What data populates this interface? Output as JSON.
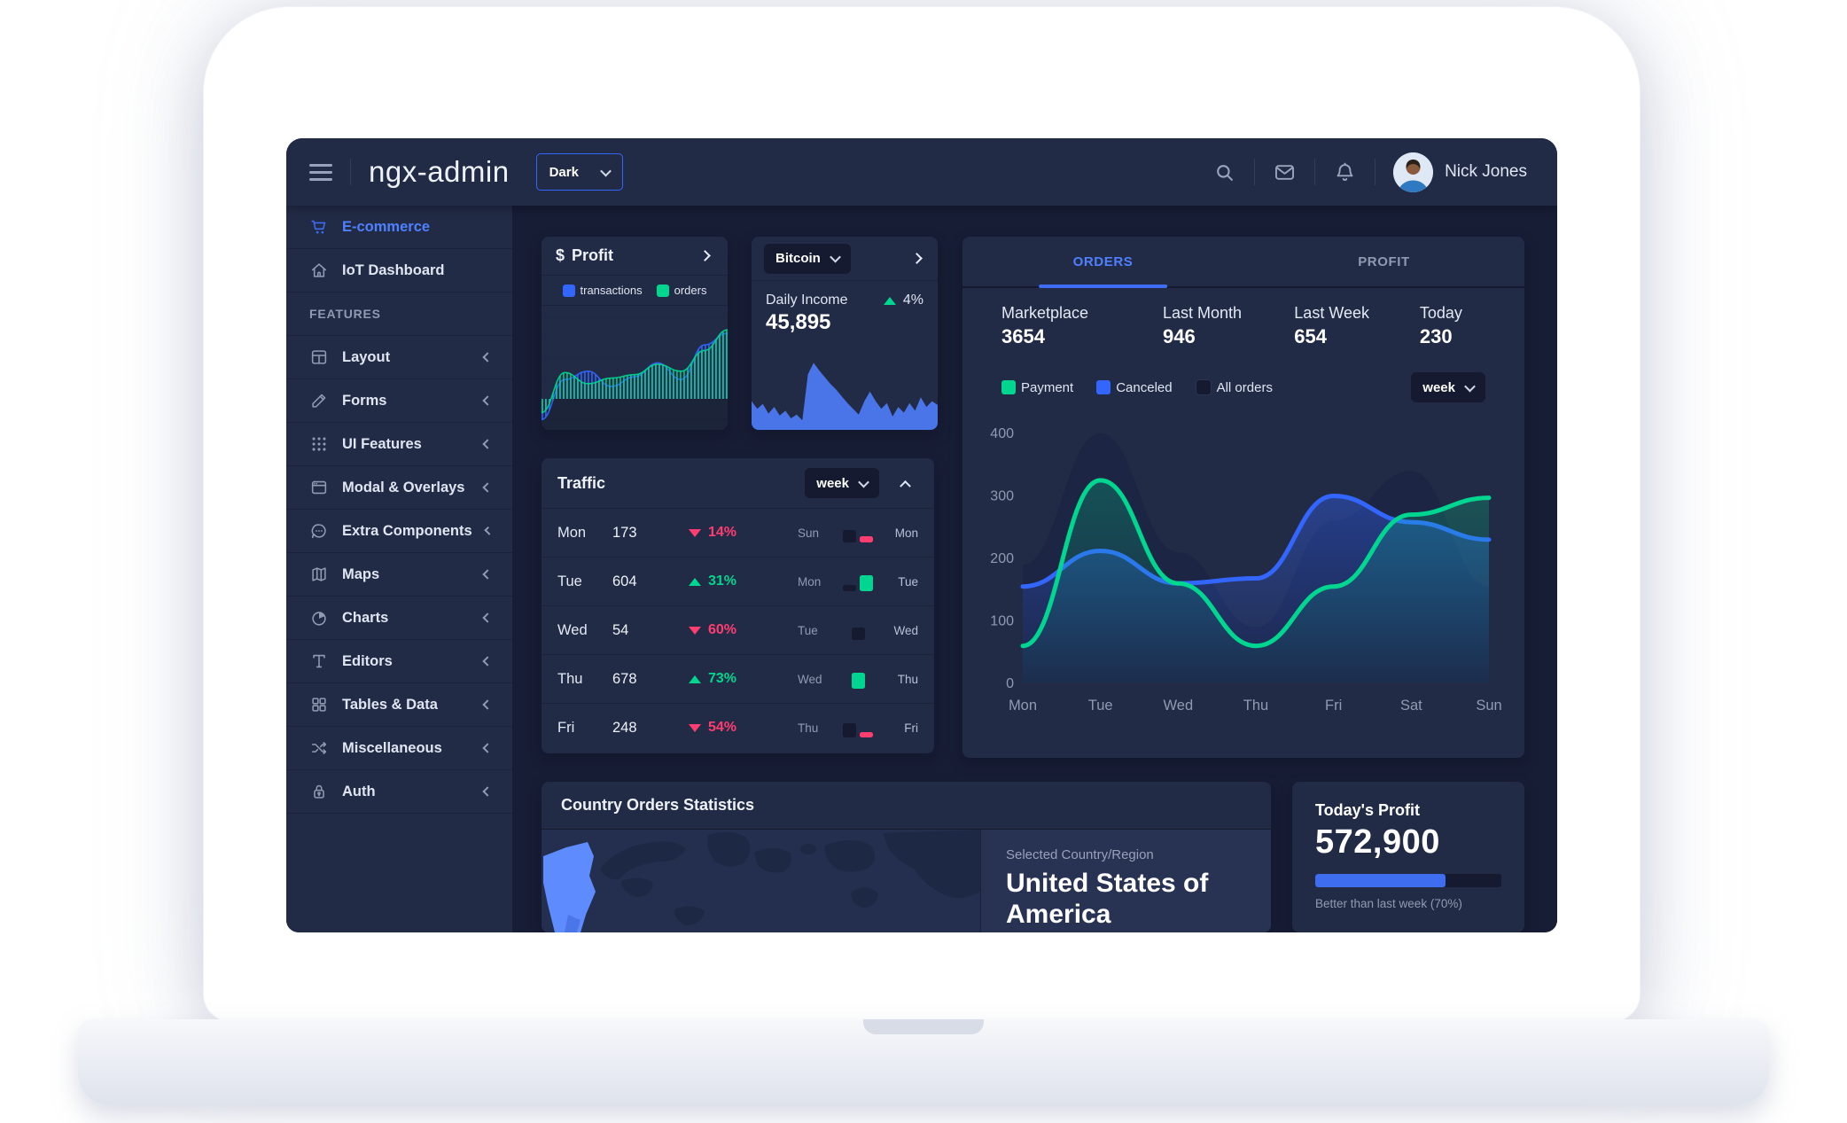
{
  "header": {
    "app_title": "ngx-admin",
    "theme_select": {
      "value": "Dark"
    },
    "icons": [
      "search-icon",
      "email-icon",
      "bell-icon"
    ],
    "user": {
      "name": "Nick Jones"
    }
  },
  "sidebar": {
    "items": [
      {
        "label": "E-commerce",
        "icon": "cart-icon",
        "active": true,
        "expandable": false
      },
      {
        "label": "IoT Dashboard",
        "icon": "home-icon",
        "active": false,
        "expandable": false
      },
      {
        "type": "group",
        "label": "FEATURES"
      },
      {
        "label": "Layout",
        "icon": "layout-icon",
        "expandable": true
      },
      {
        "label": "Forms",
        "icon": "edit-icon",
        "expandable": true
      },
      {
        "label": "UI Features",
        "icon": "keypad-icon",
        "expandable": true
      },
      {
        "label": "Modal & Overlays",
        "icon": "browser-icon",
        "expandable": true
      },
      {
        "label": "Extra Components",
        "icon": "message-circle-icon",
        "expandable": true
      },
      {
        "label": "Maps",
        "icon": "map-icon",
        "expandable": true
      },
      {
        "label": "Charts",
        "icon": "pie-chart-icon",
        "expandable": true
      },
      {
        "label": "Editors",
        "icon": "text-icon",
        "expandable": true
      },
      {
        "label": "Tables & Data",
        "icon": "grid-icon",
        "expandable": true
      },
      {
        "label": "Miscellaneous",
        "icon": "shuffle-icon",
        "expandable": true
      },
      {
        "label": "Auth",
        "icon": "lock-icon",
        "expandable": true
      }
    ]
  },
  "profit_card": {
    "icon_glyph": "$",
    "title": "Profit",
    "legend": [
      {
        "label": "transactions",
        "color": "#3366ff"
      },
      {
        "label": "orders",
        "color": "#00d68f"
      }
    ]
  },
  "bitcoin_card": {
    "currency": "Bitcoin",
    "metric_label": "Daily Income",
    "delta": "4%",
    "delta_direction": "up",
    "value": "45,895"
  },
  "orders_card": {
    "tabs": [
      {
        "label": "ORDERS",
        "active": true
      },
      {
        "label": "PROFIT",
        "active": false
      }
    ],
    "stats": [
      {
        "label": "Marketplace",
        "value": "3654"
      },
      {
        "label": "Last Month",
        "value": "946"
      },
      {
        "label": "Last Week",
        "value": "654"
      },
      {
        "label": "Today",
        "value": "230"
      }
    ],
    "legend": [
      {
        "label": "Payment",
        "color": "#00d68f"
      },
      {
        "label": "Canceled",
        "color": "#3366ff"
      },
      {
        "label": "All orders",
        "checkbox": true
      }
    ],
    "period": "week"
  },
  "traffic_card": {
    "title": "Traffic",
    "period": "week",
    "rows": [
      {
        "day": "Mon",
        "value": "173",
        "delta": "14%",
        "direction": "down",
        "compare_from": "Sun",
        "from_bar": 14,
        "to_bar": 7
      },
      {
        "day": "Tue",
        "value": "604",
        "delta": "31%",
        "direction": "up",
        "compare_from": "Mon",
        "from_bar": 7,
        "to_bar": 18
      },
      {
        "day": "Wed",
        "value": "54",
        "delta": "60%",
        "direction": "down",
        "compare_from": "Tue",
        "from_bar": 14,
        "to_bar": 0
      },
      {
        "day": "Thu",
        "value": "678",
        "delta": "73%",
        "direction": "up",
        "compare_from": "Wed",
        "from_bar": 0,
        "to_bar": 18
      },
      {
        "day": "Fri",
        "value": "248",
        "delta": "54%",
        "direction": "down",
        "compare_from": "Thu",
        "from_bar": 16,
        "to_bar": 6
      }
    ]
  },
  "country_card": {
    "title": "Country Orders Statistics",
    "selected_label": "Selected Country/Region",
    "selected_country": "United States of America",
    "highlight_color": "#5e8cff"
  },
  "today_profit_card": {
    "title": "Today's Profit",
    "value": "572,900",
    "progress_pct": 70,
    "caption": "Better than last week (70%)"
  },
  "chart_data": [
    {
      "id": "orders_weekly",
      "type": "line",
      "title": "Weekly orders",
      "x": [
        "Mon",
        "Tue",
        "Wed",
        "Thu",
        "Fri",
        "Sat",
        "Sun"
      ],
      "ylim": [
        0,
        400
      ],
      "yticks": [
        400,
        300,
        200,
        100,
        0
      ],
      "grid": true,
      "legend_position": "top",
      "series": [
        {
          "name": "All orders",
          "style": "area",
          "color": "#1c2543",
          "values": [
            190,
            400,
            210,
            90,
            260,
            340,
            155
          ]
        },
        {
          "name": "Canceled",
          "style": "line",
          "color": "#3366ff",
          "values": [
            155,
            212,
            160,
            168,
            300,
            258,
            230
          ]
        },
        {
          "name": "Payment",
          "style": "line",
          "color": "#00d68f",
          "values": [
            60,
            325,
            160,
            60,
            155,
            270,
            297
          ]
        }
      ]
    },
    {
      "id": "profit_mini",
      "type": "area",
      "title": "Profit: transactions vs orders",
      "series": [
        {
          "name": "transactions",
          "color": "#3366ff",
          "values": [
            -30,
            28,
            40,
            18,
            32,
            52,
            28,
            78,
            95
          ]
        },
        {
          "name": "orders",
          "color": "#00d68f",
          "values": [
            -20,
            38,
            22,
            30,
            35,
            50,
            40,
            70,
            100
          ]
        }
      ]
    },
    {
      "id": "bitcoin_spark",
      "type": "area",
      "title": "Bitcoin daily income sparkline",
      "color": "#4c79f0",
      "values": [
        30,
        22,
        27,
        17,
        24,
        15,
        20,
        12,
        16,
        10,
        58,
        70,
        62,
        55,
        48,
        42,
        35,
        28,
        22,
        16,
        30,
        40,
        30,
        22,
        28,
        14,
        24,
        18,
        28,
        20,
        34,
        24,
        30,
        26
      ]
    }
  ]
}
